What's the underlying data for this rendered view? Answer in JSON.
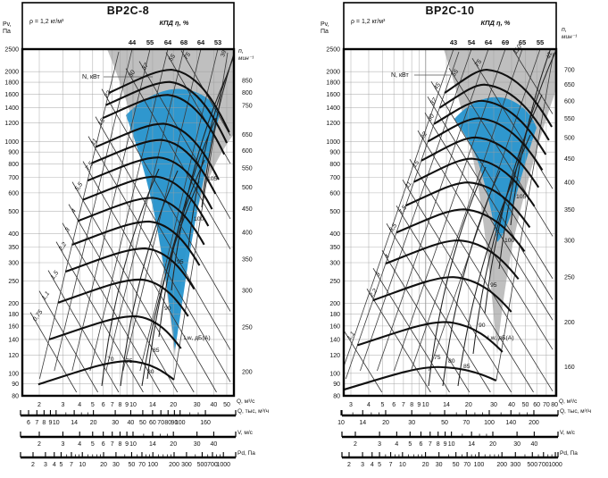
{
  "colors": {
    "zone_grey": "#b6b6b6",
    "zone_blue": "#2795cf",
    "curve": "#101010",
    "grid": "#9f9f9f",
    "frame": "#000000"
  },
  "chart_data": [
    {
      "type": "line",
      "title": "ВР2С-8",
      "density": "ρ = 1,2 кг/м³",
      "efficiency_header": "КПД η, %",
      "efficiency_ticks": [
        44,
        55,
        64,
        68,
        64,
        53
      ],
      "efficiency_edge_value": "39",
      "pv_axis": {
        "label_line1": "Pv,",
        "label_line2": "Па",
        "ticks": [
          2500,
          2000,
          1800,
          1600,
          1400,
          1200,
          1000,
          900,
          800,
          700,
          600,
          500,
          400,
          350,
          300,
          250,
          200,
          180,
          160,
          140,
          120,
          100,
          90,
          80
        ]
      },
      "n_axis": {
        "label_line1": "n,",
        "label_line2": "мин⁻¹",
        "ticks": [
          850,
          800,
          750,
          650,
          600,
          550,
          500,
          450,
          400,
          350,
          300,
          250,
          200
        ]
      },
      "q_axis": {
        "label": "Q, м³/с",
        "ticks": [
          2,
          3,
          4,
          5,
          6,
          7,
          8,
          9,
          10,
          14,
          20,
          30,
          40,
          50
        ]
      },
      "power": {
        "label": "N, кВт",
        "values": [
          "0,75",
          "1,1",
          "1,5",
          "2,2",
          "3",
          "4",
          "5,5",
          "7,5",
          "11",
          "15",
          "22",
          "30",
          "37",
          "55",
          "75"
        ]
      },
      "noise": {
        "label": "Lw, дБ(А)",
        "values": [
          70,
          75,
          80,
          85,
          90,
          95,
          100,
          105
        ]
      },
      "rulers": [
        {
          "label": "Q, тыс, м³/ч",
          "ticks": [
            6,
            7,
            8,
            9,
            10,
            14,
            20,
            30,
            40,
            50,
            60,
            70,
            80,
            90,
            100,
            160
          ]
        },
        {
          "label": "V, м/с",
          "ticks": [
            2,
            3,
            4,
            5,
            6,
            7,
            8,
            9,
            10,
            14,
            20,
            30,
            40
          ]
        },
        {
          "label": "Pd, Па",
          "ticks": [
            2,
            3,
            4,
            5,
            7,
            10,
            20,
            30,
            50,
            70,
            100,
            200,
            300,
            500,
            700,
            1000
          ]
        }
      ]
    },
    {
      "type": "line",
      "title": "ВР2С-10",
      "density": "ρ = 1,2 кг/м³",
      "efficiency_header": "КПД η, %",
      "efficiency_ticks": [
        43,
        54,
        64,
        69,
        65,
        55
      ],
      "efficiency_edge_value": "42",
      "pv_axis": {
        "label_line1": "Pv,",
        "label_line2": "Па",
        "ticks": [
          2500,
          2000,
          1800,
          1600,
          1400,
          1200,
          1000,
          900,
          800,
          700,
          600,
          500,
          400,
          350,
          300,
          250,
          200,
          180,
          160,
          140,
          120,
          100,
          90,
          80
        ]
      },
      "n_axis": {
        "label_line1": "n,",
        "label_line2": "мин⁻¹",
        "ticks": [
          700,
          650,
          600,
          550,
          500,
          450,
          400,
          350,
          300,
          250,
          200,
          160
        ]
      },
      "q_axis": {
        "label": "Q, м³/с",
        "ticks": [
          3,
          4,
          5,
          6,
          7,
          8,
          9,
          10,
          14,
          20,
          30,
          40,
          50,
          60,
          70,
          80
        ]
      },
      "power": {
        "label": "N, кВт",
        "values": [
          "1,1",
          "2,2",
          "3",
          "4",
          "5,5",
          "7,5",
          "11",
          "15",
          "22",
          "30",
          "37",
          "45",
          "55",
          "75",
          "110"
        ]
      },
      "noise": {
        "label": "Lw, дБ(А)",
        "values": [
          75,
          80,
          85,
          90,
          95,
          100,
          105
        ]
      },
      "rulers": [
        {
          "label": "Q, тыс, м³/ч",
          "ticks": [
            10,
            14,
            20,
            30,
            50,
            70,
            100,
            140,
            200
          ]
        },
        {
          "label": "V, м/с",
          "ticks": [
            2,
            3,
            4,
            5,
            6,
            7,
            8,
            9,
            10,
            14,
            20,
            30,
            40
          ]
        },
        {
          "label": "Pd, Па",
          "ticks": [
            2,
            3,
            4,
            5,
            7,
            10,
            20,
            30,
            50,
            70,
            100,
            200,
            300,
            500,
            700,
            1000
          ]
        }
      ]
    }
  ]
}
